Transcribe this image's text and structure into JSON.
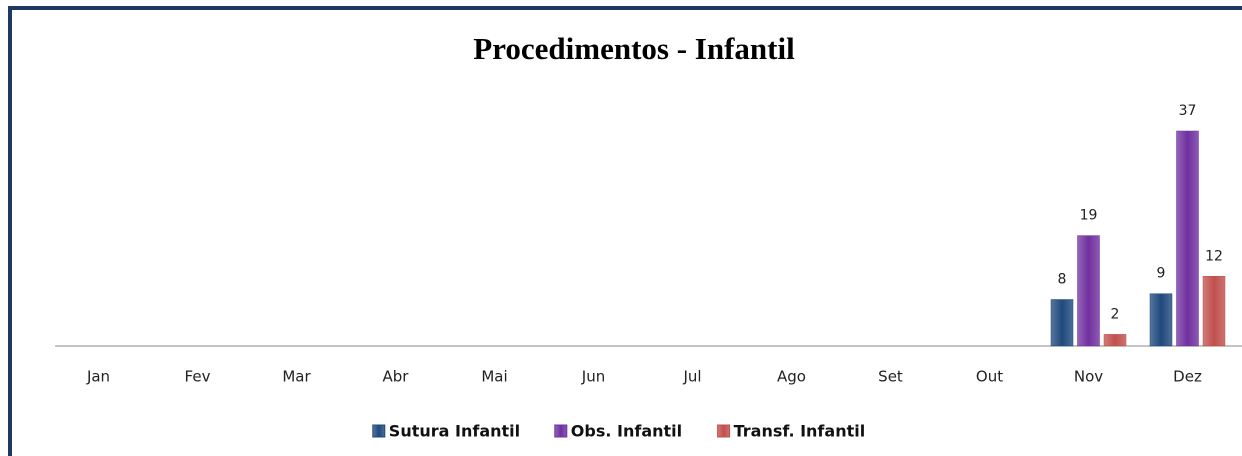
{
  "chart_data": {
    "type": "bar",
    "title": "Procedimentos - Infantil",
    "categories": [
      "Jan",
      "Fev",
      "Mar",
      "Abr",
      "Mai",
      "Jun",
      "Jul",
      "Ago",
      "Set",
      "Out",
      "Nov",
      "Dez"
    ],
    "series": [
      {
        "name": "Sutura Infantil",
        "color": "#1f497d",
        "values": [
          null,
          null,
          null,
          null,
          null,
          null,
          null,
          null,
          null,
          null,
          8,
          9
        ]
      },
      {
        "name": "Obs. Infantil",
        "color": "#7030a0",
        "values": [
          null,
          null,
          null,
          null,
          null,
          null,
          null,
          null,
          null,
          null,
          19,
          37
        ]
      },
      {
        "name": "Transf. Infantil",
        "color": "#c0504d",
        "values": [
          null,
          null,
          null,
          null,
          null,
          null,
          null,
          null,
          null,
          null,
          2,
          12
        ]
      }
    ],
    "legend": "bottom"
  }
}
